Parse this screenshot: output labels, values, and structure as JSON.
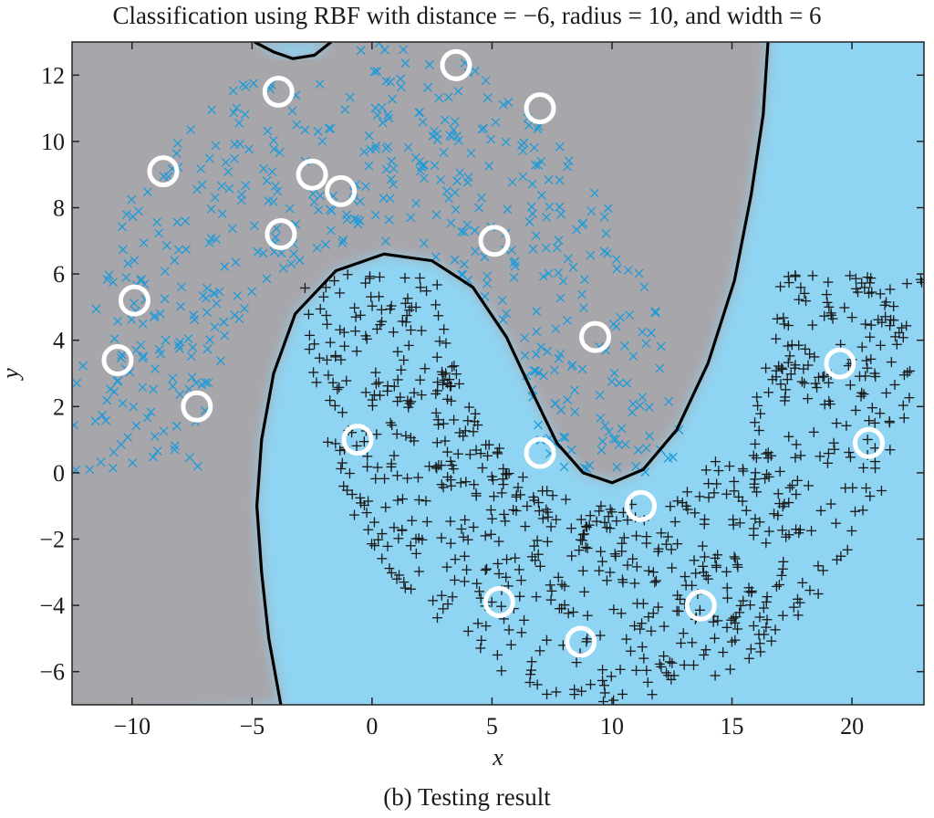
{
  "title": "Classification using RBF with distance = −6, radius = 10, and width = 6",
  "caption": "(b) Testing result",
  "colors": {
    "class1_region": "#a7a6ab",
    "class2_region": "#8fd4f2",
    "class1_marker": "#1f9bd8",
    "class2_marker": "#1a1a1a",
    "boundary": "#000000",
    "centers": "#ffffff"
  },
  "chart_data": {
    "type": "scatter",
    "title": "Classification using RBF with distance = −6, radius = 10, and width = 6",
    "xlabel": "x",
    "ylabel": "y",
    "xlim": [
      -12.5,
      23
    ],
    "ylim": [
      -7,
      13
    ],
    "xticks": [
      -10,
      -5,
      0,
      5,
      10,
      15,
      20
    ],
    "xtick_labels": [
      "−10",
      "−5",
      "0",
      "5",
      "10",
      "15",
      "20"
    ],
    "yticks": [
      -6,
      -4,
      -2,
      0,
      2,
      4,
      6,
      8,
      10,
      12
    ],
    "ytick_labels": [
      "−6",
      "−4",
      "−2",
      "0",
      "2",
      "4",
      "6",
      "8",
      "10",
      "12"
    ],
    "grid": false,
    "moons": {
      "radius": 10,
      "width": 6,
      "distance": -6,
      "upper_center": [
        0,
        0
      ],
      "lower_center": [
        10,
        6
      ]
    },
    "series": [
      {
        "marker": "x",
        "color": "#1f9bd8",
        "count": 500
      },
      {
        "marker": "+",
        "color": "#1a1a1a",
        "count": 800
      },
      {
        "marker": "open-circle",
        "color": "#ffffff",
        "points": [
          [
            3.5,
            12.3
          ],
          [
            -3.9,
            11.5
          ],
          [
            7.0,
            11.0
          ],
          [
            -8.7,
            9.1
          ],
          [
            -2.5,
            9.0
          ],
          [
            -1.3,
            8.5
          ],
          [
            -3.8,
            7.2
          ],
          [
            5.1,
            7.0
          ],
          [
            -9.9,
            5.2
          ],
          [
            9.3,
            4.1
          ],
          [
            -10.6,
            3.4
          ],
          [
            -7.3,
            2.0
          ],
          [
            19.5,
            3.3
          ],
          [
            20.7,
            0.9
          ],
          [
            -0.6,
            1.0
          ],
          [
            7.0,
            0.6
          ],
          [
            11.2,
            -1.0
          ],
          [
            5.3,
            -3.9
          ],
          [
            13.7,
            -4.0
          ],
          [
            8.7,
            -5.1
          ]
        ]
      }
    ],
    "decision_boundary": [
      [
        -3.8,
        -7.0
      ],
      [
        -4.3,
        -5.0
      ],
      [
        -4.6,
        -3.0
      ],
      [
        -4.8,
        -1.0
      ],
      [
        -4.6,
        1.0
      ],
      [
        -4.1,
        3.0
      ],
      [
        -3.2,
        4.8
      ],
      [
        -1.5,
        6.1
      ],
      [
        0.5,
        6.6
      ],
      [
        2.5,
        6.4
      ],
      [
        4.2,
        5.6
      ],
      [
        5.6,
        4.1
      ],
      [
        6.7,
        2.4
      ],
      [
        7.7,
        0.9
      ],
      [
        8.8,
        0.0
      ],
      [
        10.0,
        -0.3
      ],
      [
        11.3,
        0.1
      ],
      [
        12.7,
        1.3
      ],
      [
        14.0,
        3.3
      ],
      [
        15.1,
        5.8
      ],
      [
        15.8,
        8.4
      ],
      [
        16.3,
        10.8
      ],
      [
        16.5,
        13.0
      ]
    ],
    "top_boundary": [
      [
        -4.9,
        13.0
      ],
      [
        -4.1,
        12.7
      ],
      [
        -3.3,
        12.5
      ],
      [
        -2.4,
        12.6
      ],
      [
        -1.7,
        13.0
      ]
    ]
  }
}
